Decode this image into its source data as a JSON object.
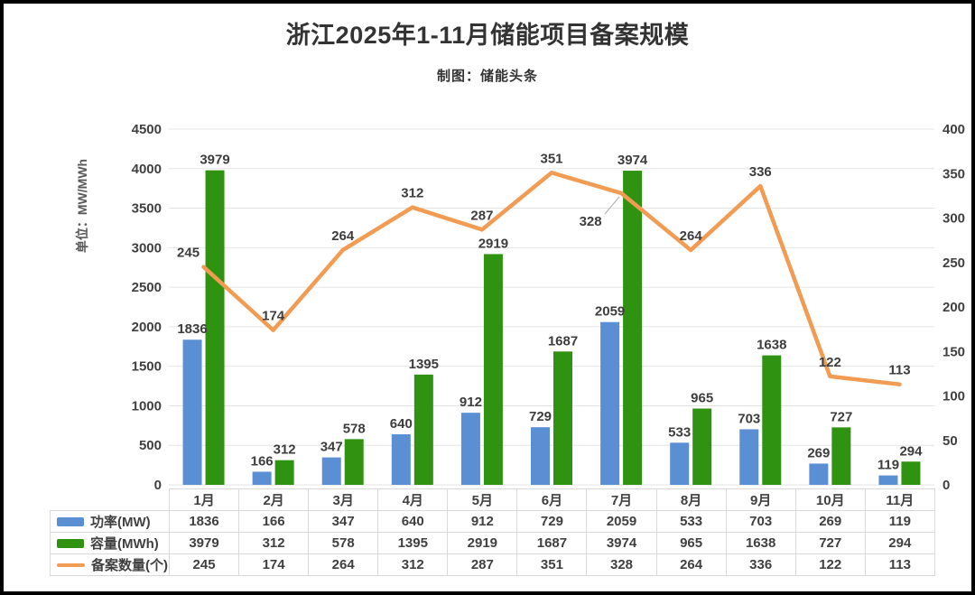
{
  "title": "浙江2025年1-11月储能项目备案规模",
  "subtitle": "制图：储能头条",
  "chart_data": {
    "type": "bar+line combo",
    "categories": [
      "1月",
      "2月",
      "3月",
      "4月",
      "5月",
      "6月",
      "7月",
      "8月",
      "9月",
      "10月",
      "11月"
    ],
    "series": [
      {
        "key": "power",
        "name": "功率(MW)",
        "type": "bar",
        "axis": "left",
        "color": "#5B8FD4",
        "values": [
          1836,
          166,
          347,
          640,
          912,
          729,
          2059,
          533,
          703,
          269,
          119
        ]
      },
      {
        "key": "capacity",
        "name": "容量(MWh)",
        "type": "bar",
        "axis": "left",
        "color": "#2F9211",
        "values": [
          3979,
          312,
          578,
          1395,
          2919,
          1687,
          3974,
          965,
          1638,
          727,
          294
        ]
      },
      {
        "key": "filings",
        "name": "备案数量(个)",
        "type": "line",
        "axis": "right",
        "color": "#F29B52",
        "values": [
          245,
          174,
          264,
          312,
          287,
          351,
          328,
          264,
          336,
          122,
          113
        ]
      }
    ],
    "left_axis": {
      "title": "单位：MW/MWh",
      "min": 0,
      "max": 4500,
      "step": 500
    },
    "right_axis": {
      "min": 0,
      "max": 400,
      "step": 50
    },
    "grid": true,
    "data_labels": true,
    "legend_position": "table-left"
  }
}
